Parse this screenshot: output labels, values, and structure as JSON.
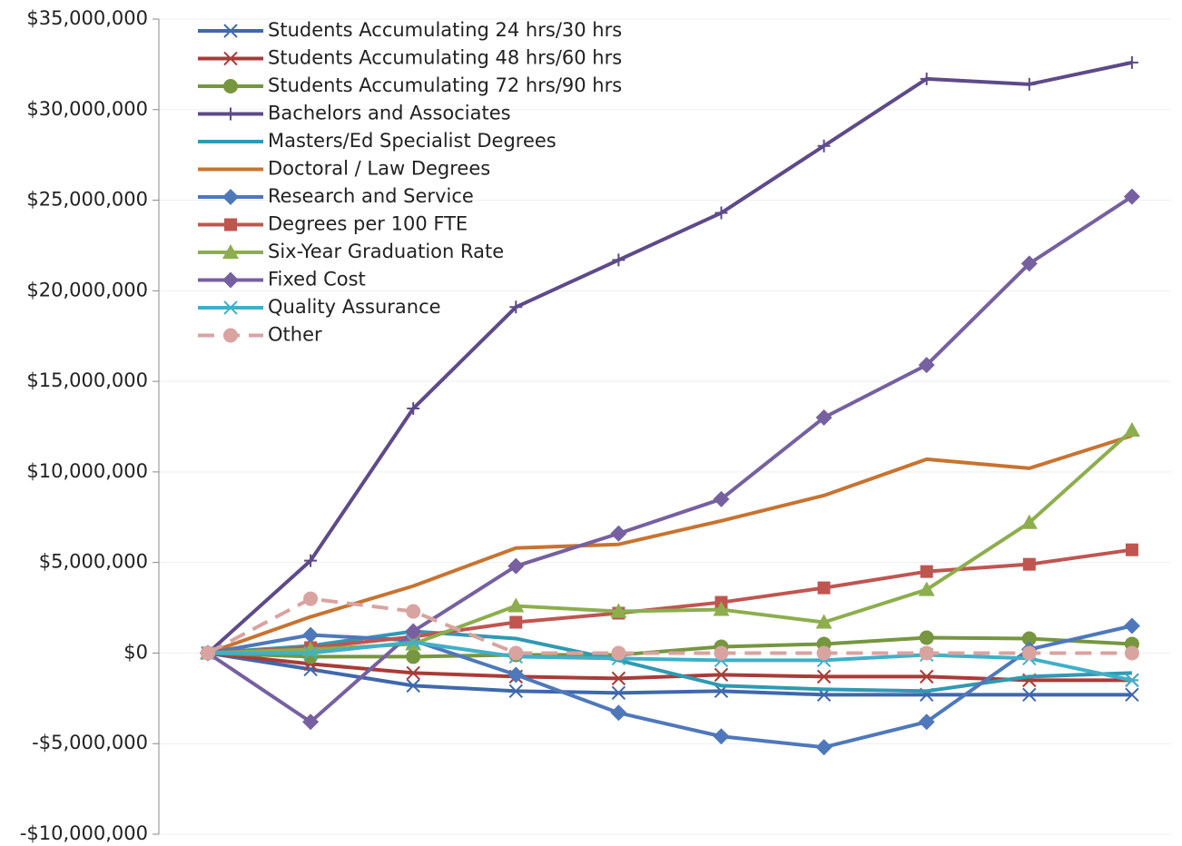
{
  "chart_data": {
    "type": "line",
    "categories": [
      null,
      null,
      null,
      null,
      null,
      null,
      null,
      null,
      null,
      null
    ],
    "ylim": [
      -10000000,
      35000000
    ],
    "yticks": [
      {
        "value": -10000000,
        "label": "-$10,000,000"
      },
      {
        "value": -5000000,
        "label": "-$5,000,000"
      },
      {
        "value": 0,
        "label": "$0"
      },
      {
        "value": 5000000,
        "label": "$5,000,000"
      },
      {
        "value": 10000000,
        "label": "$10,000,000"
      },
      {
        "value": 15000000,
        "label": "$15,000,000"
      },
      {
        "value": 20000000,
        "label": "$20,000,000"
      },
      {
        "value": 25000000,
        "label": "$25,000,000"
      },
      {
        "value": 30000000,
        "label": "$30,000,000"
      },
      {
        "value": 35000000,
        "label": "$35,000,000"
      }
    ],
    "grid": true,
    "legend": "top-left",
    "series": [
      {
        "name": "Students Accumulating 24 hrs/30 hrs",
        "color": "#3f68ad",
        "marker": "x",
        "values": [
          0,
          -900000,
          -1800000,
          -2100000,
          -2200000,
          -2100000,
          -2300000,
          -2300000,
          -2300000,
          -2300000
        ]
      },
      {
        "name": "Students Accumulating 48 hrs/60 hrs",
        "color": "#a83c38",
        "marker": "asterisk",
        "values": [
          0,
          -600000,
          -1100000,
          -1300000,
          -1400000,
          -1200000,
          -1300000,
          -1300000,
          -1500000,
          -1500000
        ]
      },
      {
        "name": "Students Accumulating 72 hrs/90 hrs",
        "color": "#76963f",
        "marker": "circle",
        "values": [
          0,
          -200000,
          -200000,
          -100000,
          -100000,
          350000,
          500000,
          850000,
          800000,
          500000
        ]
      },
      {
        "name": "Bachelors and Associates",
        "color": "#5e4a89",
        "marker": "plus",
        "values": [
          0,
          5100000,
          13500000,
          19100000,
          21700000,
          24300000,
          28000000,
          31700000,
          31400000,
          32600000
        ]
      },
      {
        "name": "Masters/Ed Specialist Degrees",
        "color": "#2f9ab2",
        "marker": "none",
        "values": [
          0,
          400000,
          1200000,
          800000,
          -400000,
          -1800000,
          -2000000,
          -2100000,
          -1300000,
          -1100000
        ]
      },
      {
        "name": "Doctoral / Law Degrees",
        "color": "#c87330",
        "marker": "none",
        "values": [
          0,
          2000000,
          3700000,
          5800000,
          6000000,
          7300000,
          8700000,
          10700000,
          10200000,
          12000000
        ]
      },
      {
        "name": "Research and Service",
        "color": "#4f78bb",
        "marker": "diamond",
        "values": [
          0,
          1000000,
          700000,
          -1200000,
          -3300000,
          -4600000,
          -5200000,
          -3800000,
          200000,
          1500000
        ]
      },
      {
        "name": "Degrees per 100 FTE",
        "color": "#c05550",
        "marker": "square",
        "values": [
          0,
          300000,
          900000,
          1700000,
          2200000,
          2800000,
          3600000,
          4500000,
          4900000,
          5700000
        ]
      },
      {
        "name": "Six-Year Graduation Rate",
        "color": "#8cae4c",
        "marker": "triangle",
        "values": [
          0,
          200000,
          500000,
          2600000,
          2300000,
          2400000,
          1700000,
          3500000,
          7200000,
          12300000
        ]
      },
      {
        "name": "Fixed Cost",
        "color": "#7660a0",
        "marker": "diamond",
        "values": [
          0,
          -3800000,
          1200000,
          4800000,
          6600000,
          8500000,
          13000000,
          15900000,
          21500000,
          25200000
        ]
      },
      {
        "name": "Quality Assurance",
        "color": "#3fb0c8",
        "marker": "asterisk",
        "values": [
          0,
          0,
          600000,
          -200000,
          -300000,
          -400000,
          -400000,
          -100000,
          -300000,
          -1500000
        ]
      },
      {
        "name": "Other",
        "color": "#d9a3a0",
        "marker": "circle",
        "dash": true,
        "values": [
          0,
          3000000,
          2300000,
          0,
          0,
          0,
          0,
          0,
          0,
          0
        ]
      }
    ]
  }
}
